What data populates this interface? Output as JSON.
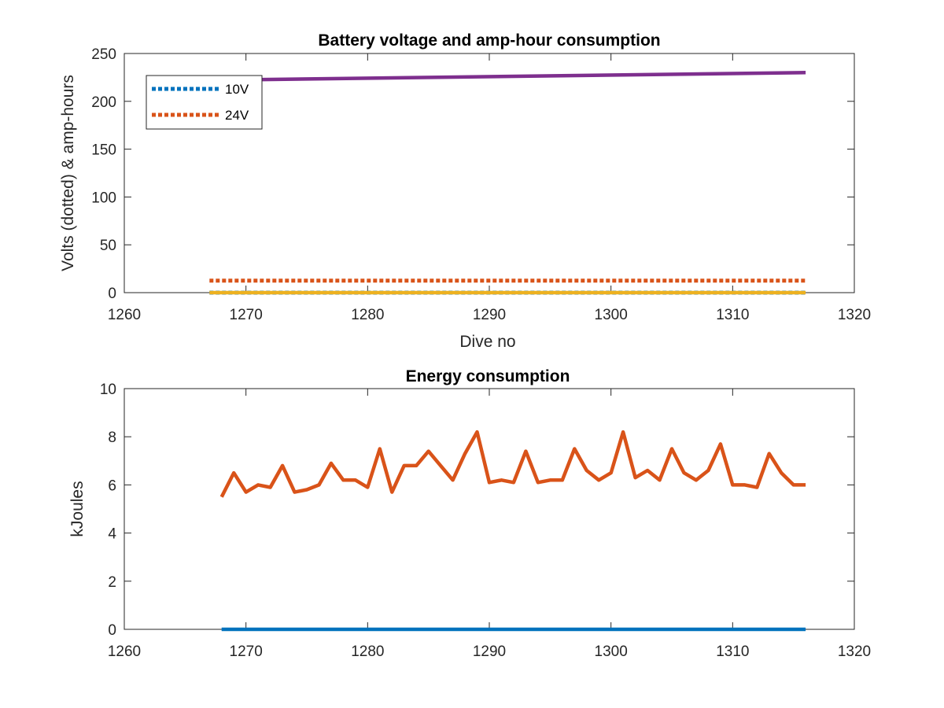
{
  "chart_data": [
    {
      "type": "line",
      "title": "Battery voltage and amp-hour consumption",
      "xlabel": "Dive no",
      "ylabel": "Volts (dotted) & amp-hours",
      "xlim": [
        1260,
        1320
      ],
      "ylim": [
        0,
        250
      ],
      "xticks": [
        "1260",
        "1270",
        "1280",
        "1290",
        "1300",
        "1310",
        "1320"
      ],
      "yticks": [
        "0",
        "50",
        "100",
        "150",
        "200",
        "250"
      ],
      "grid": false,
      "legend_position": "top-left",
      "series": [
        {
          "name": "10V",
          "style": "dotted",
          "color": "#0072BD",
          "x": [
            1267,
            1316
          ],
          "y": [
            0,
            0
          ]
        },
        {
          "name": "24V",
          "style": "dotted",
          "color": "#D95319",
          "x": [
            1267,
            1316
          ],
          "y": [
            12.5,
            12.5
          ]
        },
        {
          "style": "solid",
          "color": "#EDB120",
          "x": [
            1267,
            1316
          ],
          "y": [
            0,
            0
          ]
        },
        {
          "style": "solid",
          "color": "#7E2F8E",
          "x": [
            1267,
            1316
          ],
          "y": [
            222,
            230
          ]
        }
      ]
    },
    {
      "type": "line",
      "title": "Energy consumption",
      "xlabel": "",
      "ylabel": "kJoules",
      "xlim": [
        1260,
        1320
      ],
      "ylim": [
        0,
        10
      ],
      "xticks": [
        "1260",
        "1270",
        "1280",
        "1290",
        "1300",
        "1310",
        "1320"
      ],
      "yticks": [
        "0",
        "2",
        "4",
        "6",
        "8",
        "10"
      ],
      "grid": false,
      "series": [
        {
          "style": "solid",
          "color": "#0072BD",
          "x": [
            1268,
            1316
          ],
          "y": [
            0,
            0
          ]
        },
        {
          "style": "solid",
          "color": "#D95319",
          "x": [
            1268,
            1269,
            1270,
            1271,
            1272,
            1273,
            1274,
            1275,
            1276,
            1277,
            1278,
            1279,
            1280,
            1281,
            1282,
            1283,
            1284,
            1285,
            1286,
            1287,
            1288,
            1289,
            1290,
            1291,
            1292,
            1293,
            1294,
            1295,
            1296,
            1297,
            1298,
            1299,
            1300,
            1301,
            1302,
            1303,
            1304,
            1305,
            1306,
            1307,
            1308,
            1309,
            1310,
            1311,
            1312,
            1313,
            1314,
            1315,
            1316
          ],
          "y": [
            5.5,
            6.5,
            5.7,
            6.0,
            5.9,
            6.8,
            5.7,
            5.8,
            6.0,
            6.9,
            6.2,
            6.2,
            5.9,
            7.5,
            5.7,
            6.8,
            6.8,
            7.4,
            6.8,
            6.2,
            7.3,
            8.2,
            6.1,
            6.2,
            6.1,
            7.4,
            6.1,
            6.2,
            6.2,
            7.5,
            6.6,
            6.2,
            6.5,
            8.2,
            6.3,
            6.6,
            6.2,
            7.5,
            6.5,
            6.2,
            6.6,
            7.7,
            6.0,
            6.0,
            5.9,
            7.3,
            6.5,
            6.0,
            6.0
          ]
        }
      ]
    }
  ]
}
